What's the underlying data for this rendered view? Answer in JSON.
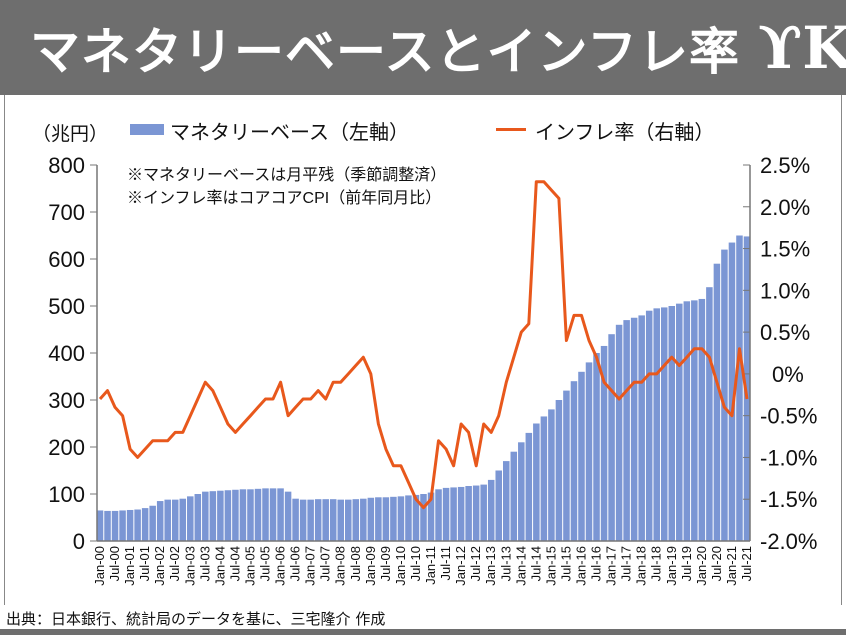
{
  "header": {
    "title": "マネタリーベースとインフレ率",
    "logo": "YK"
  },
  "footer": {
    "source": "出典：日本銀行、統計局のデータを基に、三宅隆介 作成"
  },
  "chart_data": {
    "type": "bar+line",
    "title": "マネタリーベースとインフレ率",
    "left_unit": "（兆円）",
    "notes": [
      "※マネタリーベースは月平残（季節調整済）",
      "※インフレ率はコアコアCPI（前年同月比）"
    ],
    "legend": [
      {
        "name": "マネタリーベース（左軸）",
        "color": "#7b96d4",
        "kind": "bar"
      },
      {
        "name": "インフレ率（右軸）",
        "color": "#e8581c",
        "kind": "line"
      }
    ],
    "legend_placement": "top",
    "left_ylim": [
      0,
      800
    ],
    "left_ticks": [
      "0",
      "100",
      "200",
      "300",
      "400",
      "500",
      "600",
      "700",
      "800"
    ],
    "right_ylim": [
      -2.0,
      2.5
    ],
    "right_ticks": [
      "-2.0%",
      "-1.5%",
      "-1.0%",
      "-0.5%",
      "0%",
      "0.5%",
      "1.0%",
      "1.5%",
      "2.0%",
      "2.5%"
    ],
    "x_tick_labels": [
      "Jan-00",
      "Jul-00",
      "Jan-01",
      "Jul-01",
      "Jan-02",
      "Jul-02",
      "Jan-03",
      "Jul-03",
      "Jan-04",
      "Jul-04",
      "Jan-05",
      "Jul-05",
      "Jan-06",
      "Jul-06",
      "Jan-07",
      "Jul-07",
      "Jan-08",
      "Jul-08",
      "Jan-09",
      "Jul-09",
      "Jan-10",
      "Jul-10",
      "Jan-11",
      "Jul-11",
      "Jan-12",
      "Jul-12",
      "Jan-13",
      "Jul-13",
      "Jan-14",
      "Jul-14",
      "Jan-15",
      "Jul-15",
      "Jan-16",
      "Jul-16",
      "Jan-17",
      "Jul-17",
      "Jan-18",
      "Jul-18",
      "Jan-19",
      "Jul-19",
      "Jan-20",
      "Jul-20",
      "Jan-21",
      "Jul-21"
    ],
    "x_sampling": "quarterly (Jan, Apr, Jul, Oct), Jan-00 to Jul-21",
    "series": [
      {
        "name": "マネタリーベース",
        "axis": "left",
        "values": [
          65,
          64,
          64,
          65,
          66,
          67,
          70,
          75,
          85,
          88,
          88,
          90,
          95,
          100,
          105,
          106,
          107,
          108,
          109,
          110,
          110,
          111,
          112,
          112,
          112,
          105,
          90,
          88,
          88,
          89,
          89,
          89,
          88,
          88,
          89,
          90,
          92,
          93,
          93,
          94,
          95,
          97,
          98,
          100,
          103,
          110,
          113,
          114,
          115,
          117,
          118,
          120,
          130,
          150,
          170,
          190,
          210,
          230,
          250,
          265,
          280,
          300,
          320,
          340,
          360,
          380,
          400,
          415,
          440,
          460,
          470,
          475,
          480,
          490,
          495,
          497,
          500,
          505,
          510,
          512,
          515,
          540,
          590,
          620,
          635,
          650,
          648
        ]
      },
      {
        "name": "インフレ率",
        "axis": "right",
        "values": [
          -0.3,
          -0.2,
          -0.4,
          -0.5,
          -0.9,
          -1.0,
          -0.9,
          -0.8,
          -0.8,
          -0.8,
          -0.7,
          -0.7,
          -0.5,
          -0.3,
          -0.1,
          -0.2,
          -0.4,
          -0.6,
          -0.7,
          -0.6,
          -0.5,
          -0.4,
          -0.3,
          -0.3,
          -0.1,
          -0.5,
          -0.4,
          -0.3,
          -0.3,
          -0.2,
          -0.3,
          -0.1,
          -0.1,
          0.0,
          0.1,
          0.2,
          0.0,
          -0.6,
          -0.9,
          -1.1,
          -1.1,
          -1.3,
          -1.5,
          -1.6,
          -1.5,
          -0.8,
          -0.9,
          -1.1,
          -0.6,
          -0.7,
          -1.1,
          -0.6,
          -0.7,
          -0.5,
          -0.1,
          0.2,
          0.5,
          0.6,
          2.3,
          2.3,
          2.2,
          2.1,
          0.4,
          0.7,
          0.7,
          0.4,
          0.2,
          -0.1,
          -0.2,
          -0.3,
          -0.2,
          -0.1,
          -0.1,
          0.0,
          0.0,
          0.1,
          0.2,
          0.1,
          0.2,
          0.3,
          0.3,
          0.2,
          -0.1,
          -0.4,
          -0.5,
          0.3,
          -0.3
        ]
      }
    ]
  }
}
